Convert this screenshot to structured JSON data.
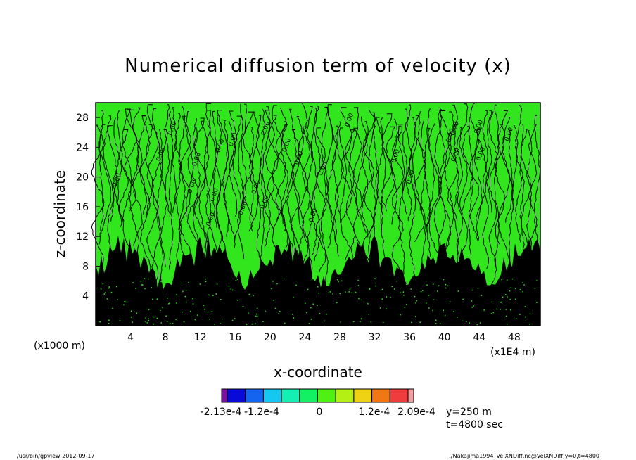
{
  "footer": {
    "left": "/usr/bin/gpview   2012-09-17",
    "right": "./Nakajima1994_VelXNDiff.nc@VelXNDiff,y=0,t=4800"
  },
  "annotations": {
    "y": "y=250 m",
    "t": "t=4800 sec",
    "x_unit": "(x1E4 m)",
    "y_unit": "(x1000 m)"
  },
  "colorbar": {
    "labels": [
      "-2.13e-4",
      "-1.2e-4",
      "0",
      "1.2e-4",
      "2.09e-4"
    ],
    "colors": [
      "#7a0fa0",
      "#0a0ad8",
      "#1464f0",
      "#14c8f0",
      "#14f0b4",
      "#14f064",
      "#50f014",
      "#b4f014",
      "#f0d214",
      "#f07814",
      "#f03c3c",
      "#f0a0a0"
    ]
  },
  "chart_data": {
    "type": "heatmap",
    "title": "Numerical diffusion term of velocity (x)",
    "xlabel": "x-coordinate",
    "ylabel": "z-coordinate",
    "xlim": [
      0,
      51
    ],
    "ylim": [
      0,
      30
    ],
    "xticks": [
      4,
      8,
      12,
      16,
      20,
      24,
      28,
      32,
      36,
      40,
      44,
      48
    ],
    "yticks": [
      4,
      8,
      12,
      16,
      20,
      24,
      28
    ],
    "field_color": "#32e61e",
    "contour_color": "#000000",
    "contour_label": "0.00"
  }
}
